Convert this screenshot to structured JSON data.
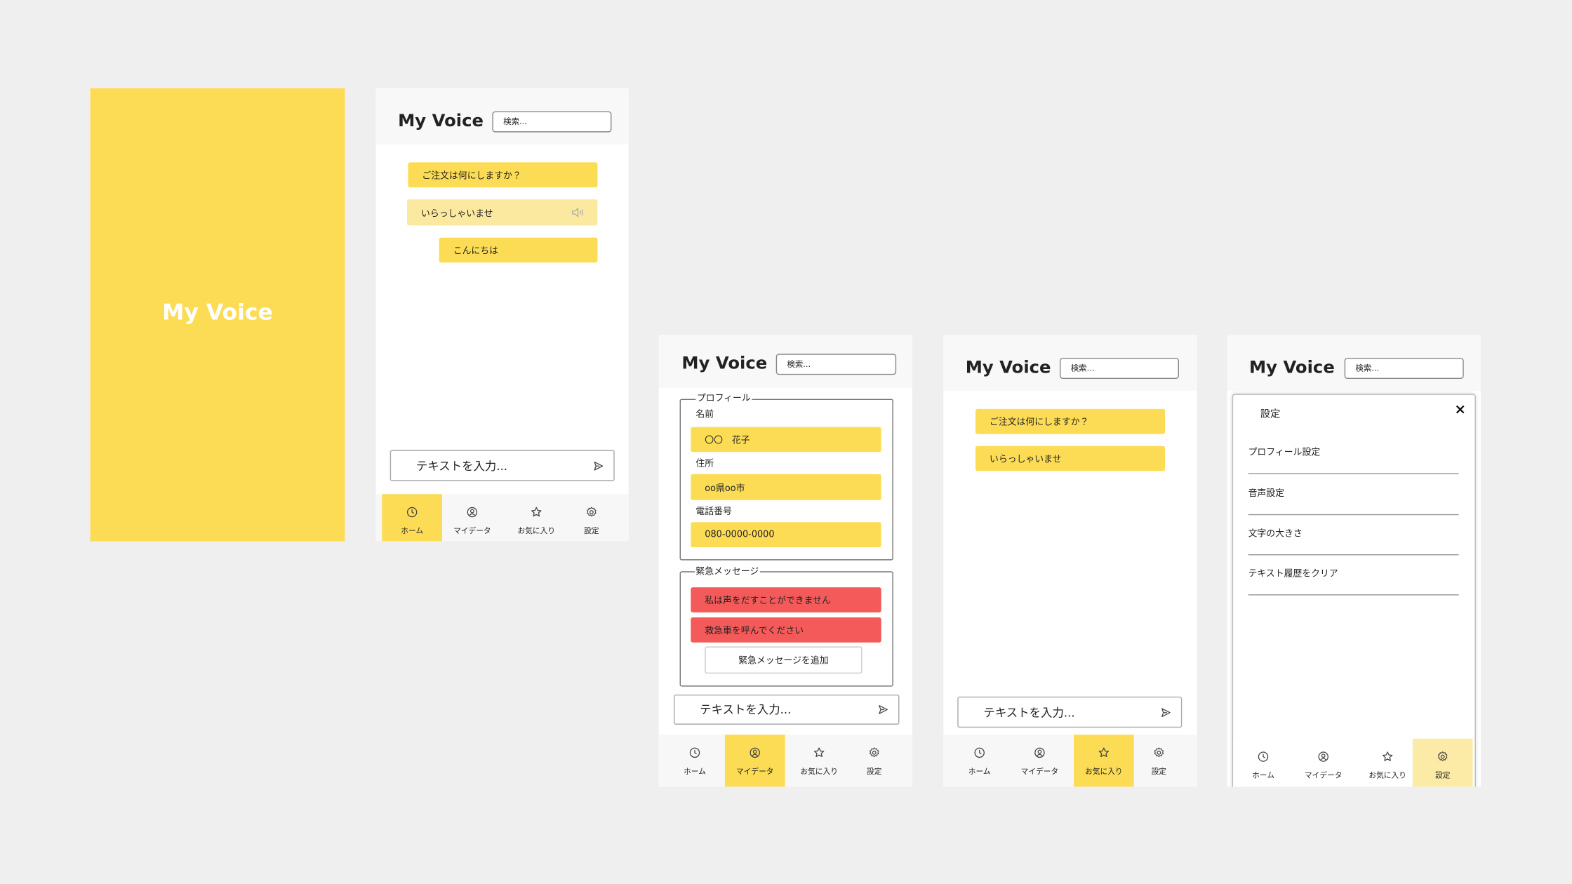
{
  "screens": [
    {
      "title": "My Voice"
    },
    {
      "title": "My Voice",
      "search": "検索...",
      "messages": [
        "ご注文は何にしますか？",
        "いらっしゃいませ",
        "こんにちは"
      ],
      "input": "テキストを入力...",
      "nav": [
        "ホーム",
        "マイデータ",
        "お気に入り",
        "設定"
      ]
    },
    {
      "title": "My Voice",
      "search": "検索...",
      "profile": {
        "legend": "プロフィール",
        "fields": [
          {
            "label": "名前",
            "value": "〇〇　花子"
          },
          {
            "label": "住所",
            "value": "oo県oo市"
          },
          {
            "label": "電話番号",
            "value": "080-0000-0000"
          }
        ]
      },
      "emergency": {
        "legend": "緊急メッセージ",
        "messages": [
          "私は声をだすことができません",
          "救急車を呼んでください"
        ],
        "add": "緊急メッセージを追加"
      },
      "input": "テキストを入力...",
      "nav": [
        "ホーム",
        "マイデータ",
        "お気に入り",
        "設定"
      ]
    },
    {
      "title": "My Voice",
      "search": "検索...",
      "messages": [
        "ご注文は何にしますか？",
        "いらっしゃいませ"
      ],
      "input": "テキストを入力...",
      "nav": [
        "ホーム",
        "マイデータ",
        "お気に入り",
        "設定"
      ]
    },
    {
      "title": "My Voice",
      "search": "検索...",
      "panel": {
        "title": "設定",
        "items": [
          "プロフィール設定",
          "音声設定",
          "文字の大きさ",
          "テキスト履歴をクリア"
        ]
      },
      "nav": [
        "ホーム",
        "マイデータ",
        "お気に入り",
        "設定"
      ]
    }
  ]
}
